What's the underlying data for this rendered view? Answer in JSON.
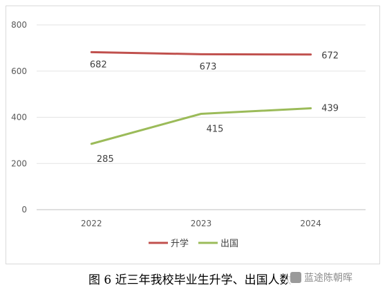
{
  "chart_data": {
    "type": "line",
    "title": "",
    "xlabel": "",
    "ylabel": "",
    "categories": [
      "2022",
      "2023",
      "2024"
    ],
    "ylim": [
      0,
      800
    ],
    "yticks": [
      0,
      200,
      400,
      600,
      800
    ],
    "grid": true,
    "legend_position": "bottom",
    "series": [
      {
        "name": "升学",
        "values": [
          682,
          673,
          672
        ],
        "color": "#c0504d"
      },
      {
        "name": "出国",
        "values": [
          285,
          415,
          439
        ],
        "color": "#9bbb59"
      }
    ]
  },
  "caption": "图 6  近三年我校毕业生升学、出国人数",
  "watermark": {
    "text": "蓝途陈朝晖",
    "icon": "wechat-icon"
  }
}
